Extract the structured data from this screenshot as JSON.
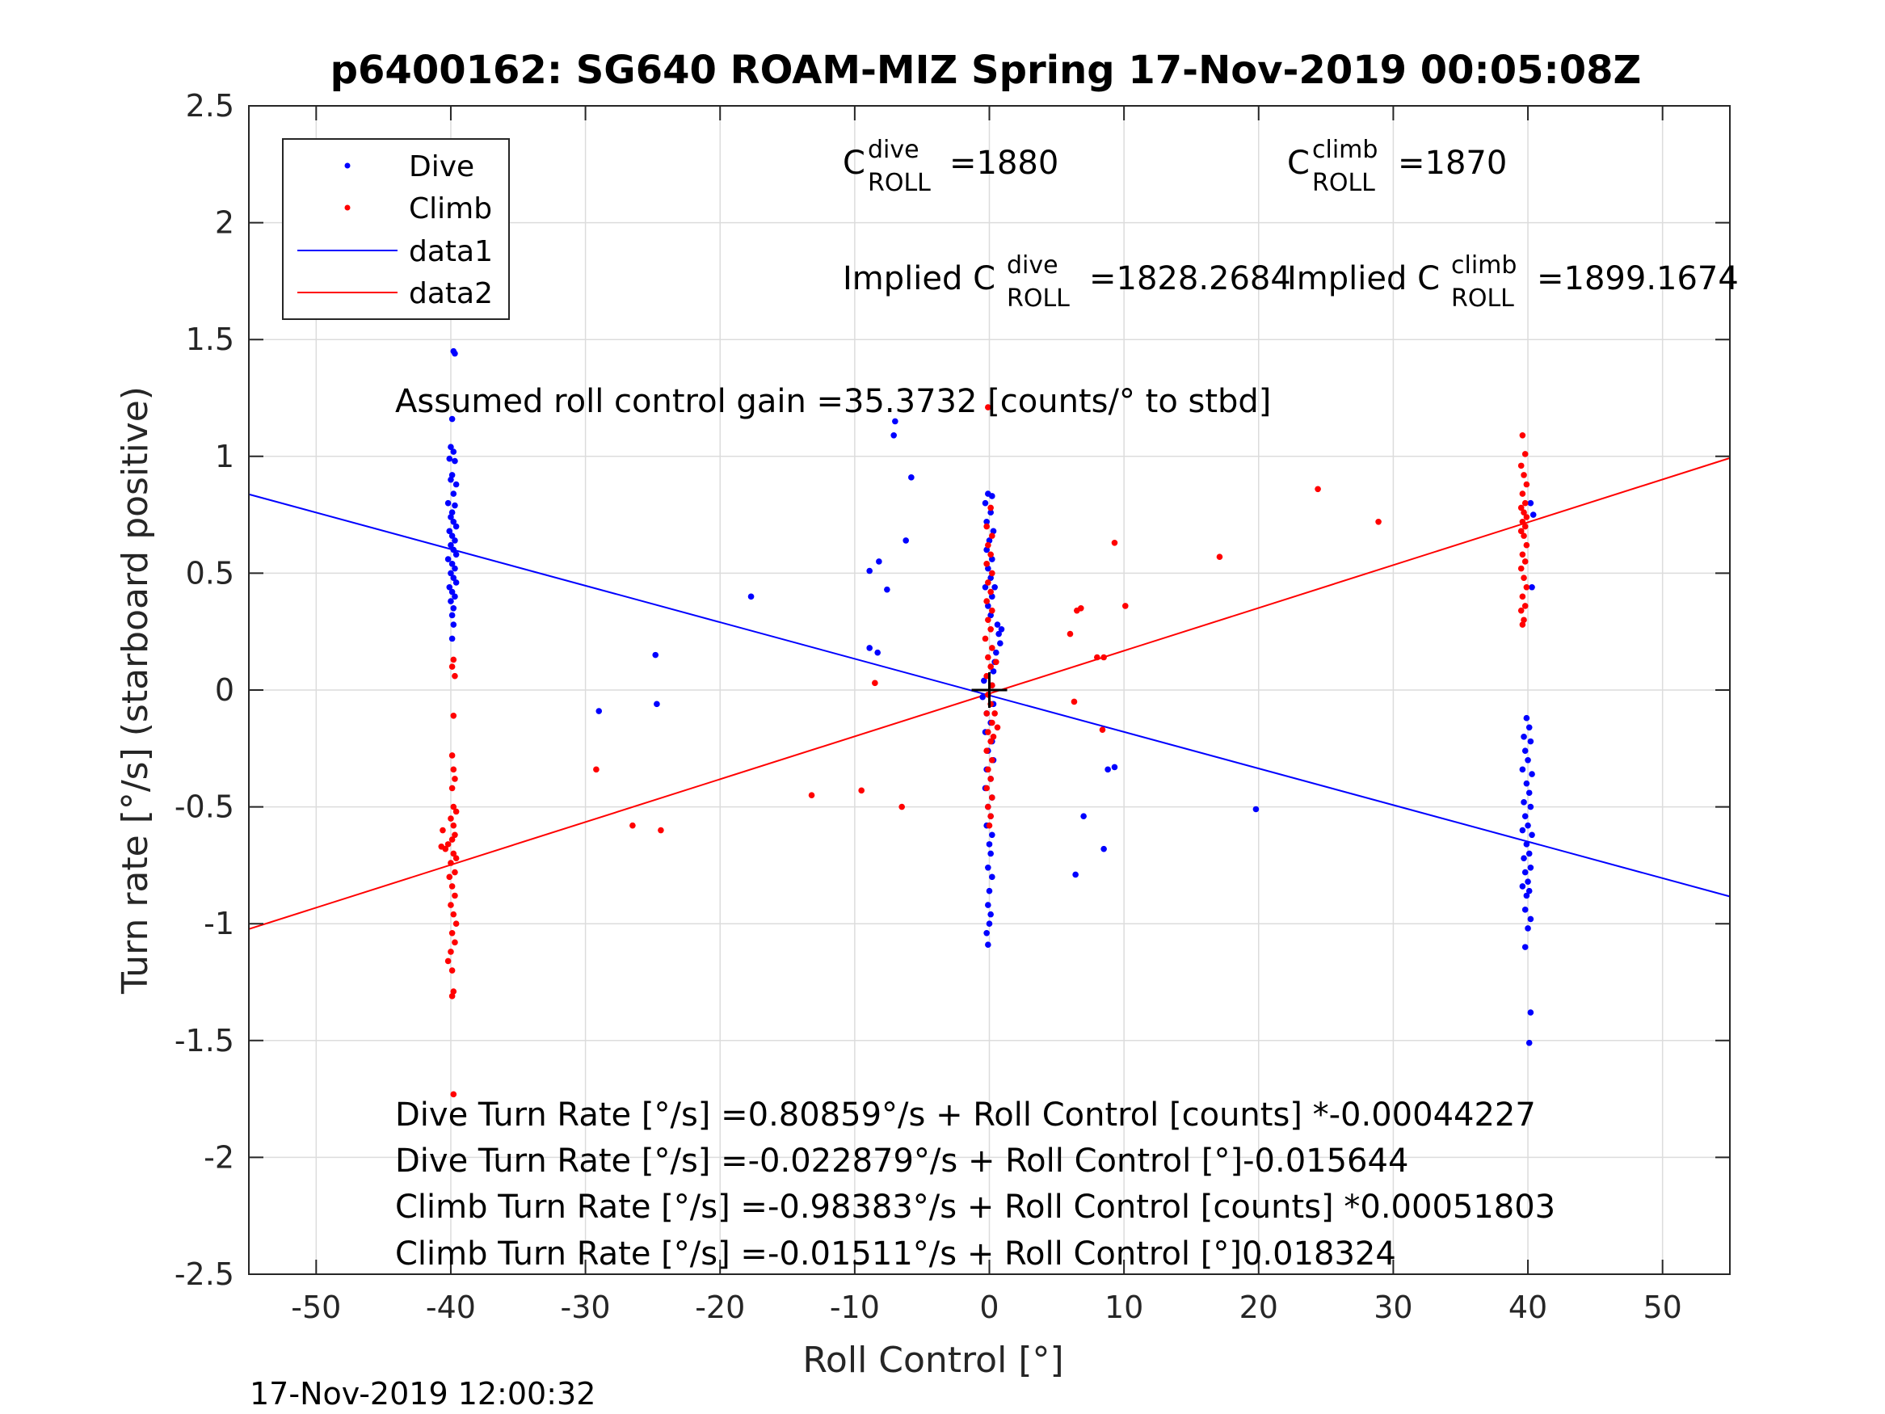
{
  "chart_data": {
    "type": "scatter",
    "title": "p6400162: SG640 ROAM-MIZ Spring 17-Nov-2019 00:05:08Z",
    "xlabel": "Roll Control [°]",
    "ylabel": "Turn rate [°/s] (starboard positive)",
    "xlim": [
      -55,
      55
    ],
    "ylim": [
      -2.5,
      2.5
    ],
    "xticks": [
      -50,
      -40,
      -30,
      -20,
      -10,
      0,
      10,
      20,
      30,
      40,
      50
    ],
    "xtick_labels": [
      "-50",
      "-40",
      "-30",
      "-20",
      "-10",
      "0",
      "10",
      "20",
      "30",
      "40",
      "50"
    ],
    "yticks": [
      -2.5,
      -2,
      -1.5,
      -1,
      -0.5,
      0,
      0.5,
      1,
      1.5,
      2,
      2.5
    ],
    "ytick_labels": [
      "-2.5",
      "-2",
      "-1.5",
      "-1",
      "-0.5",
      "0",
      "0.5",
      "1",
      "1.5",
      "2",
      "2.5"
    ],
    "grid": true,
    "legend_position": "top-left",
    "colors": {
      "dive": "#0000ff",
      "climb": "#ff0000",
      "data1": "#0000ff",
      "data2": "#ff0000",
      "center_marker": "#000000"
    },
    "series": [
      {
        "name": "Dive",
        "style": "points",
        "points": [
          [
            -39.8,
            1.45
          ],
          [
            -39.7,
            1.44
          ],
          [
            -39.9,
            1.16
          ],
          [
            -40.0,
            1.04
          ],
          [
            -39.8,
            1.02
          ],
          [
            -40.1,
            0.99
          ],
          [
            -39.7,
            0.98
          ],
          [
            -39.9,
            0.92
          ],
          [
            -40.0,
            0.9
          ],
          [
            -39.6,
            0.88
          ],
          [
            -39.8,
            0.84
          ],
          [
            -40.2,
            0.8
          ],
          [
            -39.7,
            0.79
          ],
          [
            -39.9,
            0.76
          ],
          [
            -40.0,
            0.74
          ],
          [
            -39.8,
            0.72
          ],
          [
            -39.6,
            0.7
          ],
          [
            -40.1,
            0.68
          ],
          [
            -39.9,
            0.66
          ],
          [
            -39.7,
            0.64
          ],
          [
            -40.0,
            0.62
          ],
          [
            -39.8,
            0.6
          ],
          [
            -39.6,
            0.58
          ],
          [
            -40.2,
            0.56
          ],
          [
            -39.9,
            0.54
          ],
          [
            -39.7,
            0.52
          ],
          [
            -40.0,
            0.5
          ],
          [
            -39.8,
            0.48
          ],
          [
            -39.6,
            0.46
          ],
          [
            -40.1,
            0.44
          ],
          [
            -39.9,
            0.42
          ],
          [
            -39.7,
            0.4
          ],
          [
            -40.0,
            0.38
          ],
          [
            -39.8,
            0.35
          ],
          [
            -39.9,
            0.32
          ],
          [
            -39.8,
            0.28
          ],
          [
            -39.9,
            0.22
          ],
          [
            -7.0,
            1.15
          ],
          [
            -7.1,
            1.09
          ],
          [
            -5.8,
            0.91
          ],
          [
            -6.2,
            0.64
          ],
          [
            -8.9,
            0.51
          ],
          [
            -8.2,
            0.55
          ],
          [
            -7.6,
            0.43
          ],
          [
            -17.7,
            0.4
          ],
          [
            -8.9,
            0.18
          ],
          [
            -8.3,
            0.16
          ],
          [
            -24.8,
            0.15
          ],
          [
            -24.7,
            -0.06
          ],
          [
            -29.0,
            -0.09
          ],
          [
            -0.1,
            0.84
          ],
          [
            0.2,
            0.83
          ],
          [
            -0.3,
            0.8
          ],
          [
            0.1,
            0.76
          ],
          [
            -0.2,
            0.72
          ],
          [
            0.3,
            0.68
          ],
          [
            0.0,
            0.64
          ],
          [
            -0.2,
            0.6
          ],
          [
            0.2,
            0.56
          ],
          [
            -0.1,
            0.52
          ],
          [
            0.1,
            0.48
          ],
          [
            -0.3,
            0.44
          ],
          [
            0.4,
            0.44
          ],
          [
            0.2,
            0.4
          ],
          [
            -0.1,
            0.36
          ],
          [
            0.1,
            0.32
          ],
          [
            0.6,
            0.28
          ],
          [
            0.9,
            0.26
          ],
          [
            0.7,
            0.24
          ],
          [
            0.8,
            0.2
          ],
          [
            0.5,
            0.16
          ],
          [
            0.4,
            0.12
          ],
          [
            0.3,
            0.08
          ],
          [
            -0.4,
            0.04
          ],
          [
            0.2,
            0.02
          ],
          [
            -0.5,
            -0.03
          ],
          [
            0.3,
            -0.06
          ],
          [
            -0.2,
            -0.1
          ],
          [
            0.1,
            -0.14
          ],
          [
            -0.3,
            -0.18
          ],
          [
            0.2,
            -0.22
          ],
          [
            -0.1,
            -0.26
          ],
          [
            0.3,
            -0.3
          ],
          [
            -0.2,
            -0.34
          ],
          [
            0.1,
            -0.38
          ],
          [
            -0.3,
            -0.42
          ],
          [
            0.2,
            -0.46
          ],
          [
            -0.1,
            -0.5
          ],
          [
            0.1,
            -0.54
          ],
          [
            -0.2,
            -0.58
          ],
          [
            0.2,
            -0.62
          ],
          [
            0.0,
            -0.66
          ],
          [
            0.1,
            -0.7
          ],
          [
            -0.1,
            -0.76
          ],
          [
            0.2,
            -0.8
          ],
          [
            0.0,
            -0.86
          ],
          [
            -0.1,
            -0.92
          ],
          [
            0.1,
            -0.96
          ],
          [
            0.0,
            -1.0
          ],
          [
            -0.2,
            -1.04
          ],
          [
            -0.1,
            -1.09
          ],
          [
            9.3,
            -0.33
          ],
          [
            8.8,
            -0.34
          ],
          [
            19.8,
            -0.51
          ],
          [
            7.0,
            -0.54
          ],
          [
            8.5,
            -0.68
          ],
          [
            6.4,
            -0.79
          ],
          [
            39.9,
            -0.12
          ],
          [
            40.1,
            -0.16
          ],
          [
            39.7,
            -0.2
          ],
          [
            40.2,
            -0.22
          ],
          [
            39.8,
            -0.26
          ],
          [
            40.0,
            -0.3
          ],
          [
            39.6,
            -0.34
          ],
          [
            40.3,
            -0.36
          ],
          [
            39.9,
            -0.4
          ],
          [
            40.1,
            -0.44
          ],
          [
            39.7,
            -0.48
          ],
          [
            40.2,
            -0.5
          ],
          [
            39.8,
            -0.54
          ],
          [
            40.0,
            -0.58
          ],
          [
            39.6,
            -0.6
          ],
          [
            40.3,
            -0.62
          ],
          [
            39.9,
            -0.66
          ],
          [
            40.1,
            -0.7
          ],
          [
            39.7,
            -0.72
          ],
          [
            40.2,
            -0.76
          ],
          [
            39.8,
            -0.78
          ],
          [
            40.0,
            -0.82
          ],
          [
            39.6,
            -0.84
          ],
          [
            39.9,
            -0.88
          ],
          [
            40.1,
            -0.86
          ],
          [
            39.8,
            -0.94
          ],
          [
            40.2,
            -0.98
          ],
          [
            40.0,
            -1.02
          ],
          [
            39.8,
            -1.1
          ],
          [
            40.2,
            -1.38
          ],
          [
            40.1,
            -1.51
          ],
          [
            40.3,
            0.44
          ],
          [
            40.2,
            0.8
          ],
          [
            40.4,
            0.75
          ]
        ]
      },
      {
        "name": "Climb",
        "style": "points",
        "points": [
          [
            -39.8,
            0.13
          ],
          [
            -39.9,
            0.1
          ],
          [
            -39.7,
            0.06
          ],
          [
            -39.8,
            -0.11
          ],
          [
            -39.9,
            -0.28
          ],
          [
            -39.8,
            -0.34
          ],
          [
            -39.7,
            -0.38
          ],
          [
            -39.9,
            -0.42
          ],
          [
            -39.8,
            -0.5
          ],
          [
            -39.6,
            -0.52
          ],
          [
            -40.0,
            -0.55
          ],
          [
            -39.8,
            -0.58
          ],
          [
            -39.7,
            -0.62
          ],
          [
            -39.9,
            -0.64
          ],
          [
            -40.2,
            -0.66
          ],
          [
            -40.4,
            -0.68
          ],
          [
            -39.8,
            -0.7
          ],
          [
            -39.6,
            -0.72
          ],
          [
            -40.0,
            -0.74
          ],
          [
            -39.7,
            -0.78
          ],
          [
            -40.1,
            -0.8
          ],
          [
            -39.9,
            -0.84
          ],
          [
            -39.7,
            -0.88
          ],
          [
            -40.0,
            -0.92
          ],
          [
            -39.8,
            -0.96
          ],
          [
            -39.6,
            -1.0
          ],
          [
            -39.9,
            -1.04
          ],
          [
            -39.7,
            -1.08
          ],
          [
            -40.0,
            -1.12
          ],
          [
            -40.2,
            -1.16
          ],
          [
            -39.9,
            -1.2
          ],
          [
            -39.8,
            -1.29
          ],
          [
            -39.9,
            -1.31
          ],
          [
            -39.8,
            -1.73
          ],
          [
            -40.6,
            -0.6
          ],
          [
            -40.7,
            -0.67
          ],
          [
            -29.2,
            -0.34
          ],
          [
            -26.5,
            -0.58
          ],
          [
            -24.4,
            -0.6
          ],
          [
            -13.2,
            -0.45
          ],
          [
            -9.5,
            -0.43
          ],
          [
            -6.5,
            -0.5
          ],
          [
            -8.5,
            0.03
          ],
          [
            -0.1,
            1.21
          ],
          [
            0.1,
            0.78
          ],
          [
            -0.2,
            0.7
          ],
          [
            0.2,
            0.66
          ],
          [
            -0.1,
            0.62
          ],
          [
            0.1,
            0.58
          ],
          [
            -0.2,
            0.54
          ],
          [
            0.2,
            0.5
          ],
          [
            -0.1,
            0.46
          ],
          [
            0.1,
            0.42
          ],
          [
            -0.2,
            0.38
          ],
          [
            0.2,
            0.34
          ],
          [
            -0.1,
            0.3
          ],
          [
            0.1,
            0.26
          ],
          [
            -0.3,
            0.22
          ],
          [
            0.2,
            0.18
          ],
          [
            -0.1,
            0.14
          ],
          [
            0.1,
            0.1
          ],
          [
            -0.2,
            0.06
          ],
          [
            0.2,
            0.02
          ],
          [
            -0.1,
            -0.02
          ],
          [
            0.1,
            -0.06
          ],
          [
            -0.2,
            -0.1
          ],
          [
            0.2,
            -0.14
          ],
          [
            -0.1,
            -0.18
          ],
          [
            0.1,
            -0.22
          ],
          [
            -0.2,
            -0.26
          ],
          [
            0.2,
            -0.3
          ],
          [
            -0.1,
            -0.34
          ],
          [
            0.1,
            -0.38
          ],
          [
            -0.2,
            -0.42
          ],
          [
            0.2,
            -0.46
          ],
          [
            -0.1,
            -0.5
          ],
          [
            0.1,
            -0.54
          ],
          [
            0.0,
            -0.58
          ],
          [
            0.3,
            -0.2
          ],
          [
            0.4,
            -0.1
          ],
          [
            0.5,
            0.12
          ],
          [
            0.6,
            -0.16
          ],
          [
            6.8,
            0.35
          ],
          [
            6.5,
            0.34
          ],
          [
            6.0,
            0.24
          ],
          [
            8.0,
            0.14
          ],
          [
            8.5,
            0.14
          ],
          [
            6.3,
            -0.05
          ],
          [
            8.4,
            -0.17
          ],
          [
            9.3,
            0.63
          ],
          [
            10.1,
            0.36
          ],
          [
            17.1,
            0.57
          ],
          [
            24.4,
            0.86
          ],
          [
            28.9,
            0.72
          ],
          [
            39.6,
            1.09
          ],
          [
            39.8,
            1.01
          ],
          [
            39.5,
            0.96
          ],
          [
            39.7,
            0.92
          ],
          [
            39.9,
            0.88
          ],
          [
            39.6,
            0.84
          ],
          [
            39.8,
            0.8
          ],
          [
            39.5,
            0.78
          ],
          [
            39.7,
            0.76
          ],
          [
            39.9,
            0.74
          ],
          [
            39.6,
            0.72
          ],
          [
            39.8,
            0.7
          ],
          [
            39.5,
            0.68
          ],
          [
            39.7,
            0.66
          ],
          [
            39.9,
            0.62
          ],
          [
            39.6,
            0.58
          ],
          [
            39.8,
            0.55
          ],
          [
            39.5,
            0.52
          ],
          [
            39.7,
            0.48
          ],
          [
            39.9,
            0.44
          ],
          [
            39.6,
            0.4
          ],
          [
            39.8,
            0.36
          ],
          [
            39.5,
            0.34
          ],
          [
            39.7,
            0.3
          ],
          [
            39.6,
            0.28
          ]
        ]
      },
      {
        "name": "data1",
        "style": "line",
        "points": [
          [
            -55,
            0.8377
          ],
          [
            55,
            -0.8834
          ]
        ]
      },
      {
        "name": "data2",
        "style": "line",
        "points": [
          [
            -55,
            -1.023
          ],
          [
            55,
            0.9928
          ]
        ]
      }
    ],
    "center_marker": [
      0,
      0
    ],
    "annotations": {
      "c_dive": {
        "base": "C",
        "sup": "dive",
        "sub": "ROLL",
        "value": "=1880"
      },
      "c_climb": {
        "base": "C",
        "sup": "climb",
        "sub": "ROLL",
        "value": "=1870"
      },
      "implied_dive": {
        "prefix": "Implied C",
        "sup": "dive",
        "sub": "ROLL",
        "value": "=1828.2684"
      },
      "implied_climb": {
        "prefix": "Implied C",
        "sup": "climb",
        "sub": "ROLL",
        "value": "=1899.1674"
      },
      "gain": "Assumed roll control gain =35.3732 [counts/° to stbd]",
      "eq1": "Dive Turn Rate [°/s] =0.80859°/s + Roll Control [counts] *-0.00044227",
      "eq2": "Dive Turn Rate [°/s] =-0.022879°/s + Roll Control [°]-0.015644",
      "eq3": "Climb Turn Rate [°/s] =-0.98383°/s + Roll Control [counts] *0.00051803",
      "eq4": "Climb Turn Rate [°/s] =-0.01511°/s + Roll Control [°]0.018324"
    },
    "legend": [
      "Dive",
      "Climb",
      "data1",
      "data2"
    ]
  },
  "timestamp": "17-Nov-2019 12:00:32"
}
